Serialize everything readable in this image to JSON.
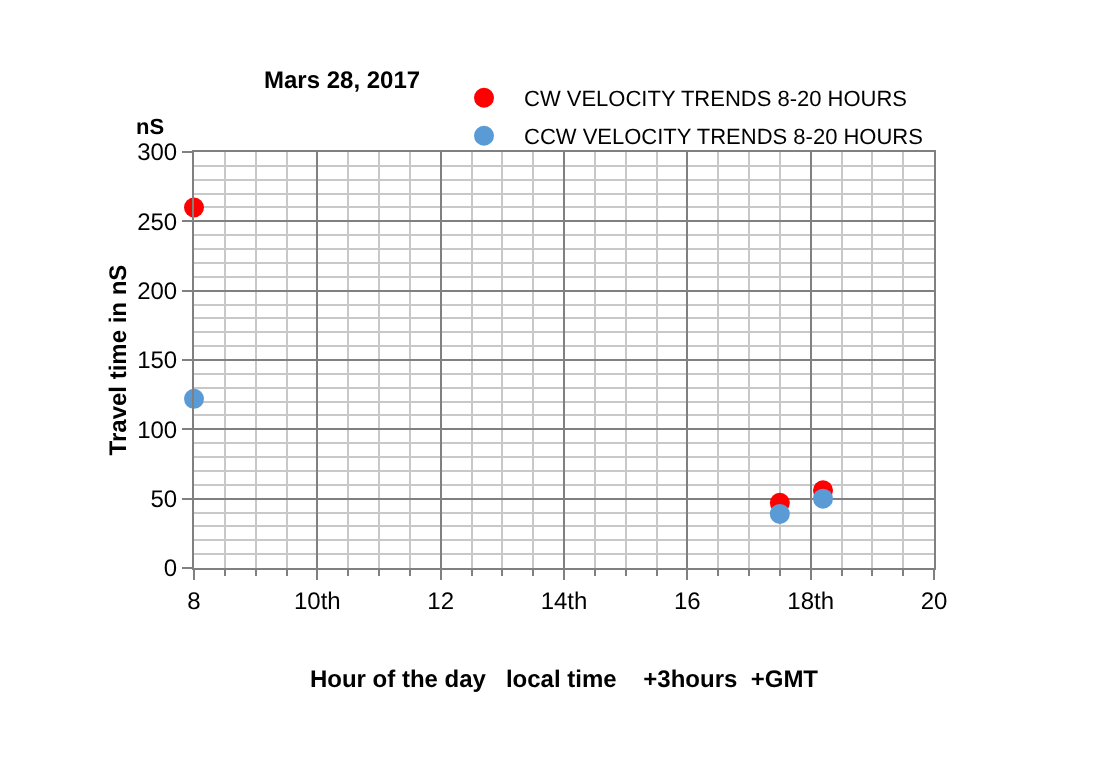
{
  "chart_data": {
    "type": "scatter",
    "title": "Mars 28, 2017",
    "xlabel": "Hour of the day   local time    +3hours  +GMT",
    "ylabel": "Travel time in nS",
    "annotations": [
      "nS"
    ],
    "x": [
      8,
      17.5,
      18.2
    ],
    "series": [
      {
        "name": "CW VELOCITY TRENDS 8-20 HOURS",
        "color": "#ff0000",
        "values": [
          260,
          47,
          56
        ]
      },
      {
        "name": "CCW VELOCITY TRENDS 8-20 HOURS",
        "color": "#5b9bd5",
        "values": [
          122,
          39,
          50
        ]
      }
    ],
    "xlim": [
      8,
      20
    ],
    "xticks": [
      8,
      {
        "value": 10,
        "label": "10th"
      },
      12,
      {
        "value": 14,
        "label": "14th"
      },
      16,
      {
        "value": 18,
        "label": "18th"
      },
      20
    ],
    "ylim": [
      0,
      300
    ],
    "yticks": [
      0,
      50,
      100,
      150,
      200,
      250,
      300
    ],
    "grid": true,
    "legend": "top right",
    "marker": "circle"
  }
}
